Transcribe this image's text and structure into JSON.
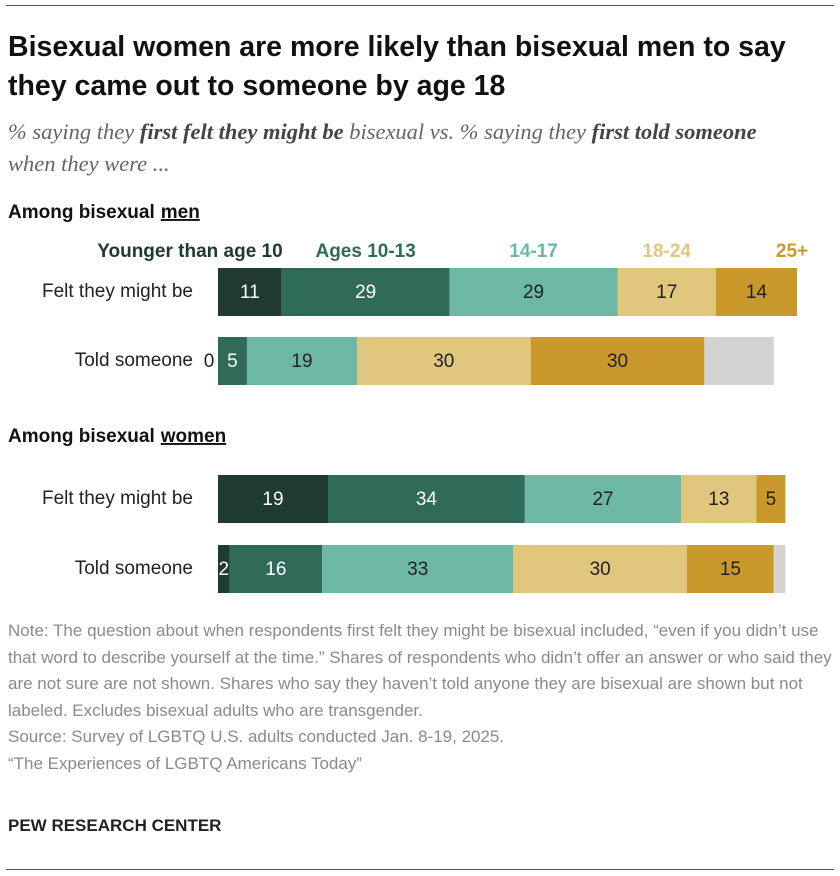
{
  "title": "Bisexual women are more likely than bisexual men to say they came out to someone by age 18",
  "subtitle": [
    "% saying they ",
    "first felt they might be",
    " bisexual vs. % saying they ",
    "first told someone",
    " when they were ..."
  ],
  "note": "Note: The question about when respondents first felt they might be bisexual included, “even if you didn’t use that word to describe yourself at the time.” Shares of respondents who didn’t offer an answer or who said they are not sure are not shown. Shares who say they haven’t told anyone they are bisexual are shown but not labeled. Excludes bisexual adults who are transgender.",
  "source": "Source: Survey of LGBTQ U.S. adults conducted Jan. 8-19, 2025.",
  "report": "“The Experiences of LGBTQ Americans Today”",
  "footer": "PEW RESEARCH CENTER",
  "chart_data": [
    {
      "type": "stacked-bar",
      "title": "Among bisexual",
      "title_emphasis": "men",
      "categories": [
        "Felt they might be",
        "Told someone"
      ],
      "xlim": [
        0,
        100
      ],
      "series": [
        {
          "name": "Younger than age 10",
          "color": "#1f3a30",
          "values": [
            11,
            0
          ]
        },
        {
          "name": "Ages 10-13",
          "color": "#2f6b58",
          "values": [
            29,
            5
          ]
        },
        {
          "name": "14-17",
          "color": "#6cb8a5",
          "values": [
            29,
            19
          ]
        },
        {
          "name": "18-24",
          "color": "#e1c67d",
          "values": [
            17,
            30
          ]
        },
        {
          "name": "25+",
          "color": "#c99a2b",
          "values": [
            14,
            30
          ]
        },
        {
          "color": "#d3d3d3",
          "values": [
            null,
            12
          ],
          "labels": false
        }
      ]
    },
    {
      "type": "stacked-bar",
      "title": "Among bisexual",
      "title_emphasis": "women",
      "categories": [
        "Felt they might be",
        "Told someone"
      ],
      "xlim": [
        0,
        100
      ],
      "series": [
        {
          "color": "#1f3a30",
          "values": [
            19,
            2
          ]
        },
        {
          "color": "#2f6b58",
          "values": [
            34,
            16
          ]
        },
        {
          "color": "#6cb8a5",
          "values": [
            27,
            33
          ]
        },
        {
          "color": "#e1c67d",
          "values": [
            13,
            30
          ]
        },
        {
          "color": "#c99a2b",
          "values": [
            5,
            15
          ]
        },
        {
          "color": "#d3d3d3",
          "values": [
            null,
            2
          ],
          "labels": false
        }
      ]
    }
  ]
}
